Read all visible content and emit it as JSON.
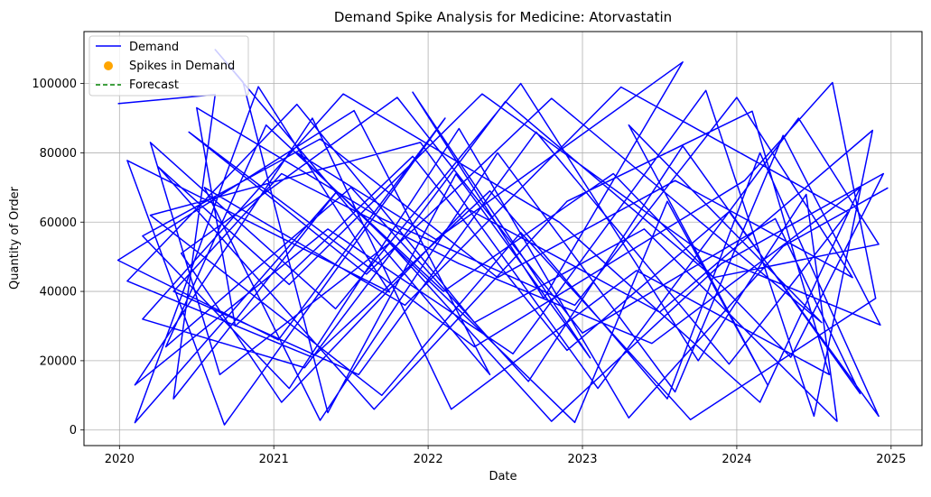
{
  "chart_data": {
    "type": "line",
    "title": "Demand Spike Analysis for Medicine: Atorvastatin",
    "xlabel": "Date",
    "ylabel": "Quantity of Order",
    "xlim": [
      2019.77,
      2025.2
    ],
    "ylim": [
      -4500,
      115000
    ],
    "x_ticks": [
      2020,
      2021,
      2022,
      2023,
      2024,
      2025
    ],
    "y_ticks": [
      0,
      20000,
      40000,
      60000,
      80000,
      100000
    ],
    "grid": true,
    "legend_position": "upper-left",
    "series": [
      {
        "name": "Demand",
        "kind": "line",
        "color": "#0000ff",
        "points": [
          [
            2019.99,
            94200
          ],
          [
            2020.62,
            96800
          ],
          [
            2020.35,
            9000
          ],
          [
            2021.4,
            68400
          ],
          [
            2020.1,
            2100
          ],
          [
            2020.9,
            99100
          ],
          [
            2021.75,
            39800
          ],
          [
            2020.05,
            77800
          ],
          [
            2020.68,
            1500
          ],
          [
            2022.11,
            90000
          ],
          [
            2021.03,
            26000
          ],
          [
            2019.99,
            49000
          ],
          [
            2021.52,
            92200
          ],
          [
            2022.4,
            16000
          ],
          [
            2020.62,
            109800
          ],
          [
            2020.8,
            100500
          ],
          [
            2021.35,
            5000
          ],
          [
            2022.18,
            73900
          ],
          [
            2023.05,
            20800
          ],
          [
            2021.9,
            97500
          ],
          [
            2022.75,
            38000
          ],
          [
            2023.65,
            106200
          ],
          [
            2022.05,
            55000
          ],
          [
            2021.15,
            80000
          ],
          [
            2022.95,
            2200
          ],
          [
            2023.55,
            66000
          ],
          [
            2024.2,
            13000
          ],
          [
            2023.3,
            88000
          ],
          [
            2024.55,
            31000
          ],
          [
            2022.8,
            95700
          ],
          [
            2021.6,
            45000
          ],
          [
            2020.45,
            86000
          ],
          [
            2022.3,
            24000
          ],
          [
            2024.05,
            72000
          ],
          [
            2024.62,
            100300
          ],
          [
            2024.9,
            38000
          ],
          [
            2023.7,
            3000
          ],
          [
            2022.6,
            57000
          ],
          [
            2021.7,
            10000
          ],
          [
            2020.2,
            62000
          ],
          [
            2021.95,
            83000
          ],
          [
            2023.1,
            12000
          ],
          [
            2024.4,
            90000
          ],
          [
            2024.92,
            53600
          ],
          [
            2023.85,
            44000
          ],
          [
            2022.5,
            94800
          ],
          [
            2021.2,
            18000
          ],
          [
            2020.15,
            32000
          ],
          [
            2021.45,
            97000
          ],
          [
            2022.85,
            60000
          ],
          [
            2024.15,
            8000
          ],
          [
            2024.8,
            70000
          ],
          [
            2023.45,
            25000
          ],
          [
            2022.2,
            48000
          ],
          [
            2021.05,
            74000
          ],
          [
            2020.35,
            40000
          ],
          [
            2021.55,
            16000
          ],
          [
            2022.7,
            86000
          ],
          [
            2023.95,
            19000
          ],
          [
            2024.72,
            62800
          ],
          [
            2023.25,
            99000
          ],
          [
            2021.85,
            36000
          ],
          [
            2020.55,
            70000
          ],
          [
            2021.3,
            2800
          ],
          [
            2022.45,
            80000
          ],
          [
            2023.6,
            11000
          ],
          [
            2024.3,
            85000
          ],
          [
            2024.93,
            30300
          ],
          [
            2023.75,
            52000
          ],
          [
            2022.35,
            97000
          ],
          [
            2021.1,
            42000
          ],
          [
            2020.25,
            76000
          ],
          [
            2021.65,
            6000
          ],
          [
            2022.9,
            66000
          ],
          [
            2024.1,
            92000
          ],
          [
            2024.6,
            16000
          ],
          [
            2023.35,
            46000
          ],
          [
            2022.15,
            6000
          ],
          [
            2021.25,
            90000
          ],
          [
            2020.1,
            13000
          ],
          [
            2021.35,
            58000
          ],
          [
            2022.55,
            22000
          ],
          [
            2023.8,
            98000
          ],
          [
            2024.5,
            4000
          ],
          [
            2024.88,
            86500
          ],
          [
            2023.5,
            34000
          ],
          [
            2022.25,
            64000
          ],
          [
            2021.05,
            8000
          ],
          [
            2020.4,
            51000
          ],
          [
            2021.8,
            96000
          ],
          [
            2023.0,
            28000
          ],
          [
            2024.25,
            61000
          ],
          [
            2024.8,
            10500
          ],
          [
            2023.65,
            82000
          ],
          [
            2022.65,
            14000
          ],
          [
            2021.5,
            70000
          ],
          [
            2020.3,
            24000
          ],
          [
            2020.95,
            88000
          ],
          [
            2022.1,
            40000
          ],
          [
            2023.2,
            74000
          ],
          [
            2024.35,
            21000
          ],
          [
            2024.95,
            74000
          ],
          [
            2023.9,
            48000
          ],
          [
            2022.8,
            2500
          ],
          [
            2021.75,
            54000
          ],
          [
            2020.65,
            16000
          ],
          [
            2020.2,
            83000
          ],
          [
            2021.4,
            35000
          ],
          [
            2022.6,
            100000
          ],
          [
            2023.75,
            20000
          ],
          [
            2024.45,
            68000
          ],
          [
            2024.65,
            2500
          ],
          [
            2023.4,
            58000
          ],
          [
            2022.3,
            31000
          ],
          [
            2021.15,
            94000
          ],
          [
            2020.05,
            43000
          ],
          [
            2021.25,
            21000
          ],
          [
            2022.4,
            69000
          ],
          [
            2023.55,
            9000
          ],
          [
            2024.15,
            80000
          ],
          [
            2024.92,
            4000
          ],
          [
            2023.95,
            63000
          ],
          [
            2022.9,
            23000
          ],
          [
            2021.9,
            79000
          ],
          [
            2020.75,
            30000
          ],
          [
            2020.5,
            93000
          ],
          [
            2021.7,
            61000
          ],
          [
            2022.95,
            36000
          ],
          [
            2024.0,
            96000
          ],
          [
            2024.75,
            44000
          ],
          [
            2023.6,
            72000
          ],
          [
            2022.45,
            44000
          ],
          [
            2021.3,
            84000
          ],
          [
            2020.15,
            56000
          ],
          [
            2021.1,
            12000
          ],
          [
            2022.2,
            87000
          ],
          [
            2023.3,
            3500
          ],
          [
            2024.3,
            53000
          ],
          [
            2024.98,
            69900
          ]
        ]
      },
      {
        "name": "Spikes in Demand",
        "kind": "scatter",
        "color": "#ffa500",
        "points": []
      },
      {
        "name": "Forecast",
        "kind": "dashed-line",
        "color": "#008000",
        "points": []
      }
    ]
  }
}
